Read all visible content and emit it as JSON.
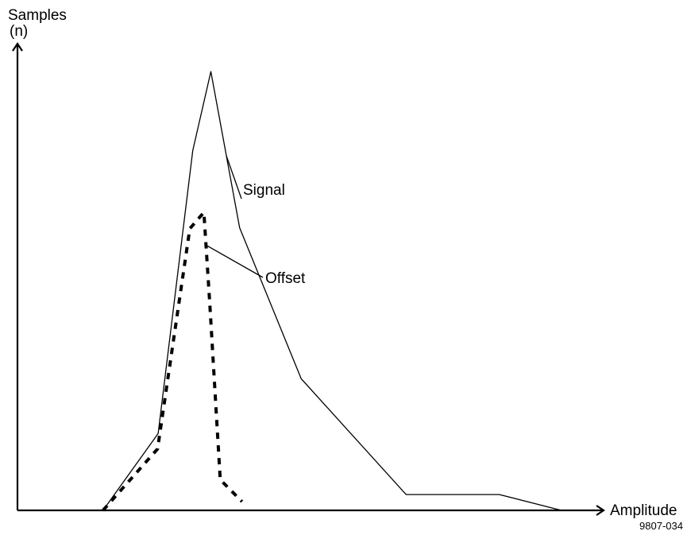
{
  "chart_data": {
    "type": "line",
    "title": "",
    "xlabel": "Amplitude",
    "ylabel_line1": "Samples",
    "ylabel_line2": "(n)",
    "figure_id": "9807-034",
    "xlim": [
      0,
      100
    ],
    "ylim": [
      0,
      100
    ],
    "grid": false,
    "legend": "none",
    "annotations": [
      {
        "text": "Signal",
        "target_series": 0
      },
      {
        "text": "Offset",
        "target_series": 1
      }
    ],
    "series": [
      {
        "name": "Signal",
        "style": "solid",
        "points": [
          [
            14.6,
            0
          ],
          [
            24.0,
            17.5
          ],
          [
            29.9,
            82.0
          ],
          [
            33.0,
            100
          ],
          [
            37.9,
            64.4
          ],
          [
            48.4,
            30.0
          ],
          [
            66.3,
            3.6
          ],
          [
            82.2,
            3.6
          ],
          [
            92.8,
            0
          ]
        ]
      },
      {
        "name": "Offset",
        "style": "dashed",
        "points": [
          [
            14.6,
            0
          ],
          [
            23.9,
            14.0
          ],
          [
            29.4,
            64.2
          ],
          [
            31.8,
            67.9
          ],
          [
            32.8,
            47.2
          ],
          [
            34.6,
            7.0
          ],
          [
            38.3,
            2.0
          ]
        ]
      }
    ]
  }
}
